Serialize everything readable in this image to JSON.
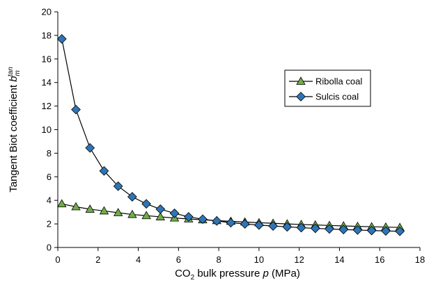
{
  "chart_data": {
    "type": "line",
    "title": "",
    "xlabel": {
      "prefix": "CO",
      "sub": "2",
      "mid": " bulk pressure ",
      "italic": "p",
      "suffix": " (MPa)"
    },
    "ylabel": {
      "prefix": "Tangent Biot coefficient ",
      "italic": "b",
      "sub": "m",
      "sup": "tan"
    },
    "xlim": [
      0,
      18
    ],
    "ylim": [
      0,
      20
    ],
    "xticks": [
      0,
      2,
      4,
      6,
      8,
      10,
      12,
      14,
      16,
      18
    ],
    "yticks": [
      0,
      2,
      4,
      6,
      8,
      10,
      12,
      14,
      16,
      18,
      20
    ],
    "grid": false,
    "legend_position": "right",
    "series": [
      {
        "name": "Ribolla coal",
        "marker": "triangle",
        "color": "#70ad47",
        "x": [
          0.2,
          0.9,
          1.6,
          2.3,
          3.0,
          3.7,
          4.4,
          5.1,
          5.8,
          6.5,
          7.2,
          7.9,
          8.6,
          9.3,
          10.0,
          10.7,
          11.4,
          12.1,
          12.8,
          13.5,
          14.2,
          14.9,
          15.6,
          16.3,
          17.0
        ],
        "y": [
          3.7,
          3.45,
          3.25,
          3.1,
          2.95,
          2.8,
          2.7,
          2.6,
          2.5,
          2.42,
          2.35,
          2.28,
          2.22,
          2.16,
          2.1,
          2.05,
          2.0,
          1.95,
          1.91,
          1.87,
          1.83,
          1.79,
          1.76,
          1.73,
          1.7
        ]
      },
      {
        "name": "Sulcis coal",
        "marker": "diamond",
        "color": "#2e75b6",
        "x": [
          0.2,
          0.9,
          1.6,
          2.3,
          3.0,
          3.7,
          4.4,
          5.1,
          5.8,
          6.5,
          7.2,
          7.9,
          8.6,
          9.3,
          10.0,
          10.7,
          11.4,
          12.1,
          12.8,
          13.5,
          14.2,
          14.9,
          15.6,
          16.3,
          17.0
        ],
        "y": [
          17.7,
          11.7,
          8.45,
          6.5,
          5.2,
          4.3,
          3.7,
          3.25,
          2.9,
          2.6,
          2.4,
          2.25,
          2.1,
          2.0,
          1.9,
          1.82,
          1.75,
          1.68,
          1.62,
          1.57,
          1.52,
          1.48,
          1.44,
          1.4,
          1.37
        ]
      }
    ]
  }
}
